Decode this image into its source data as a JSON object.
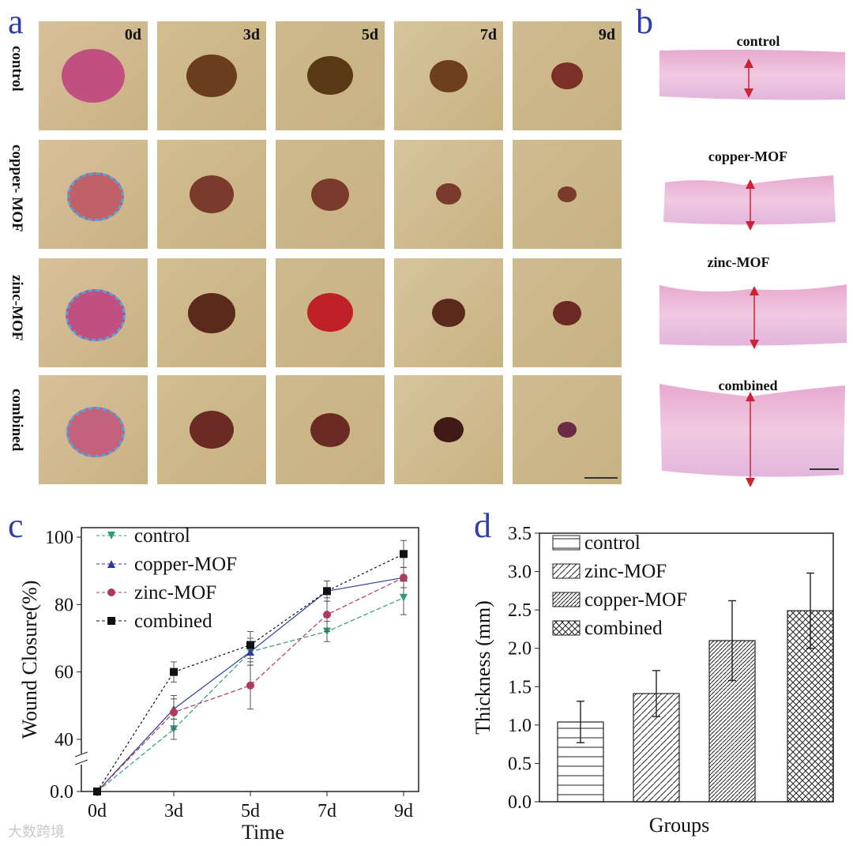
{
  "panels": {
    "a": "a",
    "b": "b",
    "c": "c",
    "d": "d"
  },
  "photo_grid": {
    "row_labels": [
      "control",
      "copper- MOF",
      "zinc-MOF",
      "combined"
    ],
    "day_labels": [
      "0d",
      "3d",
      "5d",
      "7d",
      "9d"
    ]
  },
  "histology": {
    "labels": [
      "control",
      "copper-MOF",
      "zinc-MOF",
      "combined"
    ]
  },
  "chart_data": [
    {
      "type": "line",
      "panel": "c",
      "title": "",
      "xlabel": "Time",
      "ylabel": "Wound Closure(%)",
      "categories": [
        "0d",
        "3d",
        "5d",
        "7d",
        "9d"
      ],
      "y_ticks": [
        "0.0",
        "40",
        "60",
        "80",
        "100"
      ],
      "axis_break": "between 0 and 40",
      "legend_position": "top-left",
      "series": [
        {
          "name": "control",
          "marker": "triangle-down",
          "color": "#2f9a7e",
          "values": [
            0,
            43,
            66,
            72,
            82
          ],
          "errors": [
            0,
            3,
            4,
            3,
            5
          ]
        },
        {
          "name": "copper-MOF",
          "marker": "triangle-up",
          "color": "#2b3aa0",
          "values": [
            0,
            49,
            66,
            84,
            88
          ],
          "errors": [
            0,
            3,
            4,
            3,
            3
          ]
        },
        {
          "name": "zinc-MOF",
          "marker": "circle",
          "color": "#b03a5b",
          "values": [
            0,
            48,
            56,
            77,
            88
          ],
          "errors": [
            0,
            5,
            7,
            5,
            3
          ]
        },
        {
          "name": "combined",
          "marker": "square",
          "color": "#111111",
          "values": [
            0,
            60,
            68,
            84,
            95
          ],
          "errors": [
            0,
            3,
            4,
            3,
            4
          ]
        }
      ]
    },
    {
      "type": "bar",
      "panel": "d",
      "title": "",
      "xlabel": "Groups",
      "ylabel": "Thickness (mm)",
      "ylim": [
        0,
        3.5
      ],
      "y_ticks": [
        "0.0",
        "0.5",
        "1.0",
        "1.5",
        "2.0",
        "2.5",
        "3.0",
        "3.5"
      ],
      "legend_position": "top-left",
      "categories": [
        "control",
        "zinc-MOF",
        "copper-MOF",
        "combined"
      ],
      "values": [
        1.04,
        1.41,
        2.1,
        2.49
      ],
      "errors": [
        0.27,
        0.3,
        0.52,
        0.49
      ],
      "patterns": [
        "horizontal",
        "diagonal",
        "diagonal-dense",
        "crosshatch"
      ]
    }
  ],
  "watermark": "大数跨境",
  "colors": {
    "panel_letter": "#2f3fa7",
    "arrow": "#cc2233",
    "histo_pink": "#e9b4d3"
  }
}
